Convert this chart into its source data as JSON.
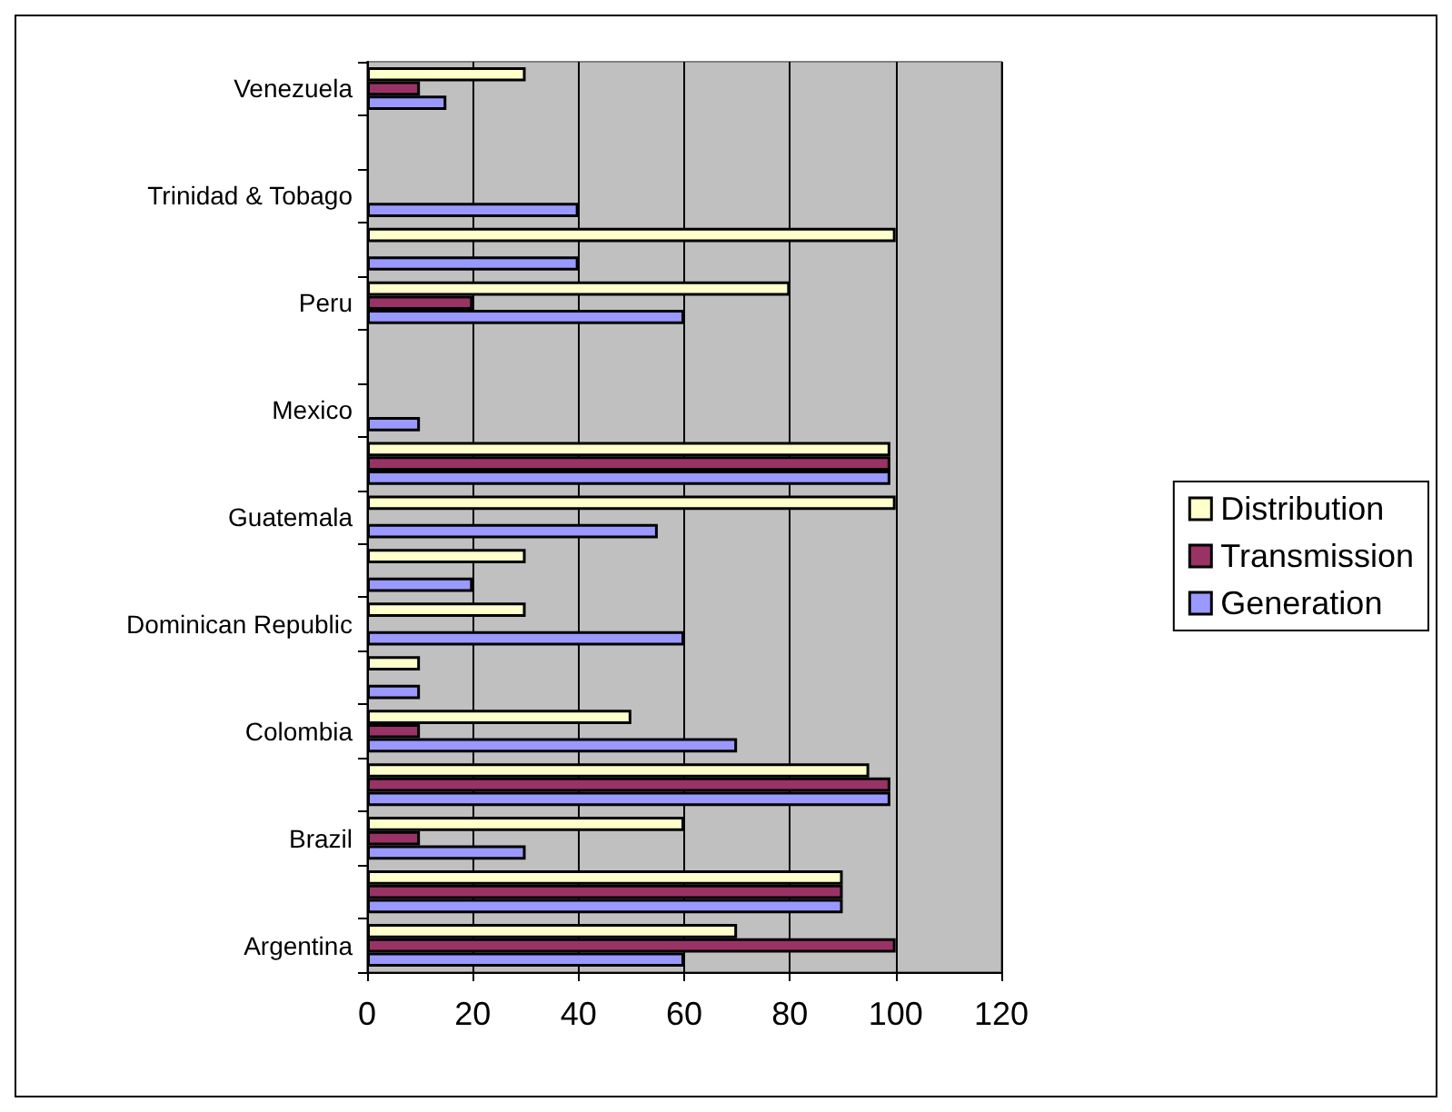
{
  "chart_data": {
    "type": "bar",
    "orientation": "horizontal",
    "categories": [
      "Venezuela",
      null,
      "Trinidad & Tobago",
      null,
      "Peru",
      null,
      "Mexico",
      null,
      "Guatemala",
      null,
      "Dominican Republic",
      null,
      "Colombia",
      null,
      "Brazil",
      null,
      "Argentina"
    ],
    "series": [
      {
        "name": "Distribution",
        "color": "#ffffcc",
        "values": [
          30,
          null,
          null,
          100,
          80,
          null,
          null,
          99,
          100,
          30,
          30,
          10,
          50,
          95,
          60,
          90,
          70
        ]
      },
      {
        "name": "Transmission",
        "color": "#993366",
        "values": [
          10,
          null,
          null,
          null,
          20,
          null,
          null,
          99,
          null,
          null,
          null,
          null,
          10,
          99,
          10,
          90,
          100
        ]
      },
      {
        "name": "Generation",
        "color": "#9999ff",
        "values": [
          15,
          null,
          40,
          40,
          60,
          null,
          10,
          99,
          55,
          20,
          60,
          10,
          70,
          99,
          30,
          90,
          60
        ]
      }
    ],
    "xlim": [
      0,
      120
    ],
    "xticks": [
      0,
      20,
      40,
      60,
      80,
      100,
      120
    ],
    "grid": "x",
    "legend": "right"
  }
}
